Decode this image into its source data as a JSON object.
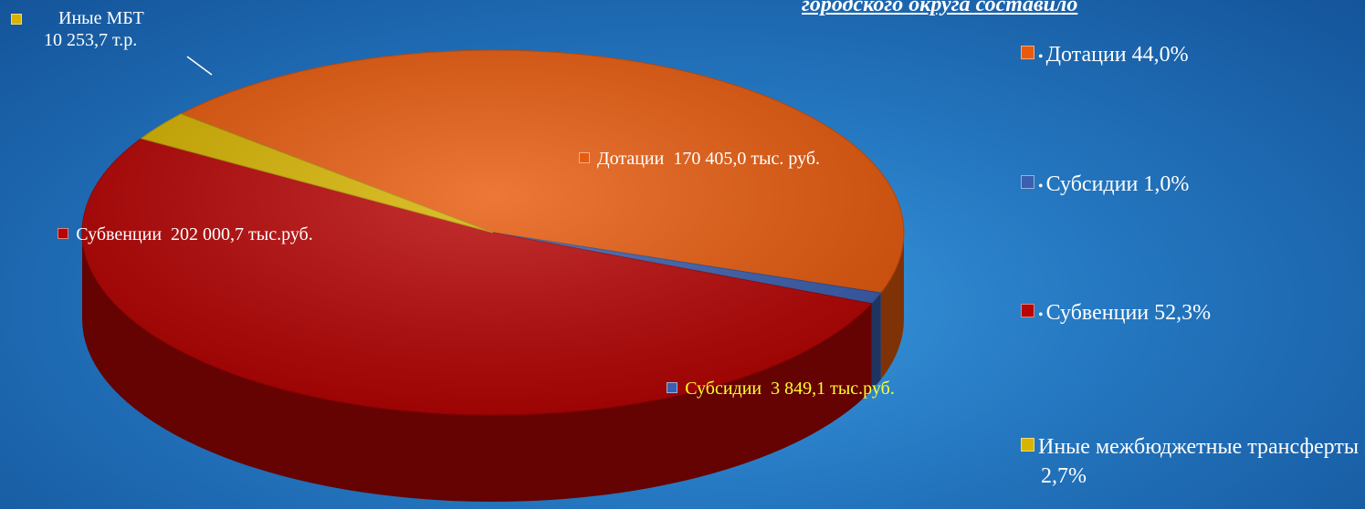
{
  "chart_data": {
    "type": "pie3d",
    "title": "городского округа составило",
    "categories": [
      "Дотации",
      "Субсидии",
      "Субвенции",
      "Иные МБТ"
    ],
    "values": [
      170405.0,
      3849.1,
      202000.7,
      10253.7
    ],
    "value_labels": [
      "170 405,0 тыс. руб.",
      "3 849,1 тыс.руб.",
      "202 000,7 тыс.руб.",
      "10 253,7  т.р."
    ],
    "colors": [
      "#e85a0c",
      "#3a5fb0",
      "#b80404",
      "#d8b400"
    ],
    "legend_names": [
      "Дотации",
      "Субсидии",
      "Субвенции",
      "Иные межбюджетные трансферты"
    ],
    "shares": [
      44.0,
      1.0,
      52.3,
      2.7
    ],
    "share_labels": [
      "44,0%",
      "1,0%",
      "52,3%",
      "2,7%"
    ]
  }
}
